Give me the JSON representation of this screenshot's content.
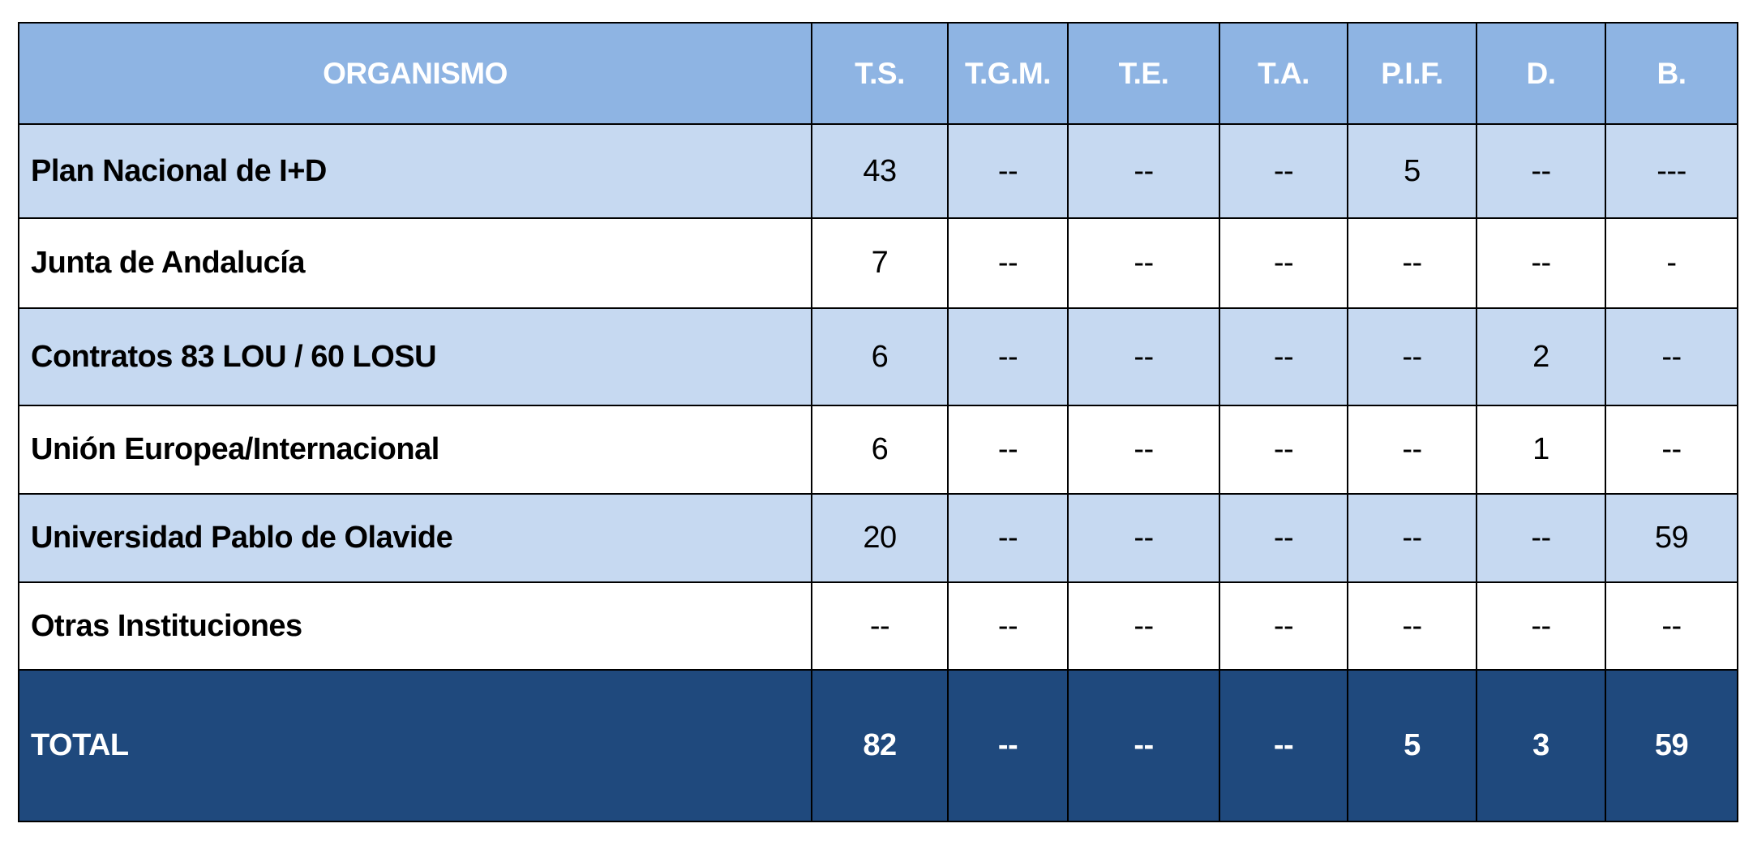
{
  "table": {
    "headers": [
      "ORGANISMO",
      "T.S.",
      "T.G.M.",
      "T.E.",
      "T.A.",
      "P.I.F.",
      "D.",
      "B."
    ],
    "rows": [
      {
        "organismo": "Plan Nacional de I+D",
        "values": [
          "43",
          "--",
          "--",
          "--",
          "5",
          "--",
          "---"
        ]
      },
      {
        "organismo": "Junta de Andalucía",
        "values": [
          "7",
          "--",
          "--",
          "--",
          "--",
          "--",
          "-"
        ]
      },
      {
        "organismo": "Contratos 83 LOU / 60 LOSU",
        "values": [
          "6",
          "--",
          "--",
          "--",
          "--",
          "2",
          "--"
        ]
      },
      {
        "organismo": "Unión Europea/Internacional",
        "values": [
          "6",
          "--",
          "--",
          "--",
          "--",
          "1",
          "--"
        ]
      },
      {
        "organismo": "Universidad Pablo de Olavide",
        "values": [
          "20",
          "--",
          "--",
          "--",
          "--",
          "--",
          "59"
        ]
      },
      {
        "organismo": "Otras Instituciones",
        "values": [
          "--",
          "--",
          "--",
          "--",
          "--",
          "--",
          "--"
        ]
      }
    ],
    "total": {
      "label": "TOTAL",
      "values": [
        "82",
        "--",
        "--",
        "--",
        "5",
        "3",
        "59"
      ]
    }
  },
  "colors": {
    "header_bg": "#8eb4e3",
    "row_shade_bg": "#c6d9f1",
    "total_bg": "#1f497d",
    "border": "#000000"
  }
}
